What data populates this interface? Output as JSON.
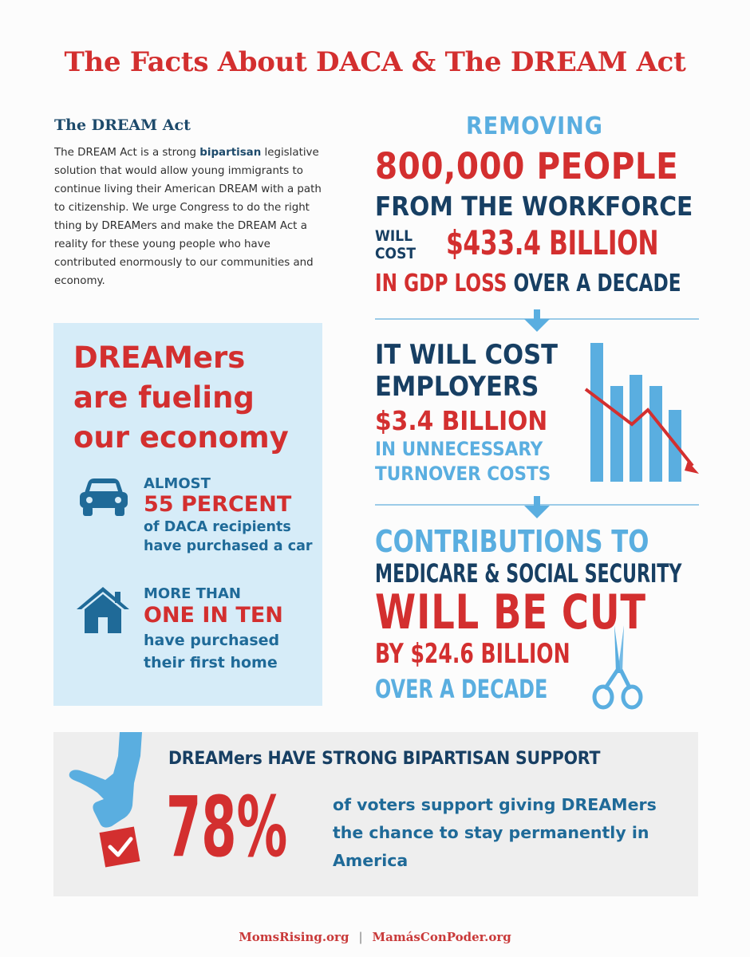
{
  "title": "The Facts About DACA & The DREAM Act",
  "dream_act": {
    "heading": "The DREAM Act",
    "body_pre": "The DREAM Act is a strong ",
    "body_bold": "bipartisan",
    "body_post": " legislative solution that would allow young immigrants to continue living their American DREAM with a path to citizenship. We urge Congress to do the right thing by DREAMers and make the DREAM Act a reality for these young people who have contributed enormously to our communities and economy."
  },
  "economy_box": {
    "headline_1": "DREAMers",
    "headline_2": "are fueling",
    "headline_3": "our economy",
    "car_stat": {
      "icon": "car-icon",
      "line1": "ALMOST",
      "line2": "55 PERCENT",
      "line3": "of DACA recipients",
      "line4": "have purchased a car"
    },
    "home_stat": {
      "icon": "house-icon",
      "line1": "MORE THAN",
      "line2": "ONE IN TEN",
      "line3": "have purchased",
      "line4": "their first home"
    }
  },
  "workforce": {
    "line1": "REMOVING",
    "line2": "800,000 PEOPLE",
    "line3": "FROM THE WORKFORCE",
    "will": "WILL",
    "cost": "COST",
    "amount": "$433.4 BILLION",
    "gdp_red": "IN GDP LOSS",
    "gdp_navy": "OVER A DECADE"
  },
  "employers": {
    "line1": "IT WILL COST",
    "line2": "EMPLOYERS",
    "line3": "$3.4 BILLION",
    "line4": "IN UNNECESSARY",
    "line5": "TURNOVER COSTS",
    "chart_icon": "declining-bar-chart-icon"
  },
  "contributions": {
    "line1": "CONTRIBUTIONS TO",
    "line2": "MEDICARE & SOCIAL SECURITY",
    "line3": "WILL BE CUT",
    "line4": "BY $24.6 BILLION",
    "line5": "OVER A DECADE",
    "icon": "scissors-icon"
  },
  "support": {
    "heading": "DREAMers HAVE STRONG BIPARTISAN SUPPORT",
    "percent": "78%",
    "text": "of voters support giving DREAMers the chance to stay permanently in America",
    "icon": "hand-ballot-icon"
  },
  "footer": {
    "left": "MomsRising.org",
    "separator": "|",
    "right": "MamásConPoder.org"
  },
  "colors": {
    "red": "#d32f2f",
    "navy": "#173f63",
    "light_blue": "#5aaee0",
    "box_blue": "#d6ecf8"
  }
}
